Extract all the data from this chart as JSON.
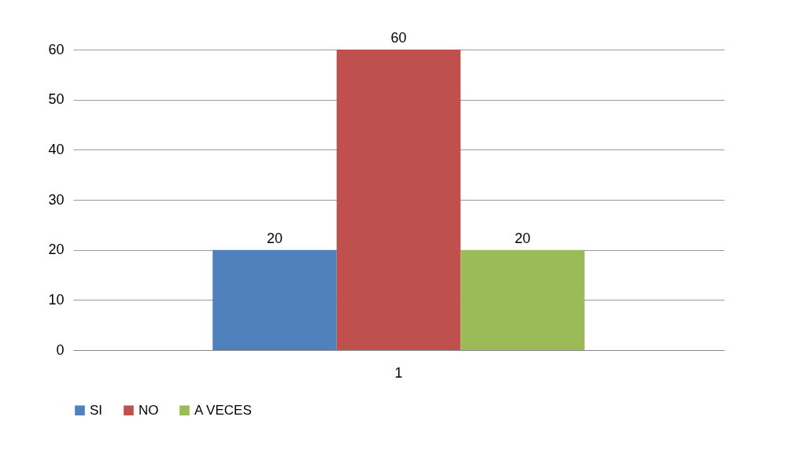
{
  "chart_data": {
    "type": "bar",
    "categories": [
      "1"
    ],
    "series": [
      {
        "name": "SI",
        "color": "#4f81bd",
        "values": [
          20
        ]
      },
      {
        "name": "NO",
        "color": "#c0504d",
        "values": [
          60
        ]
      },
      {
        "name": "A VECES",
        "color": "#9bbb59",
        "values": [
          20
        ]
      }
    ],
    "ylim": [
      0,
      60
    ],
    "yticks": [
      0,
      10,
      20,
      30,
      40,
      50,
      60
    ],
    "grid": "y",
    "legend": "bottom",
    "data_labels": true
  }
}
